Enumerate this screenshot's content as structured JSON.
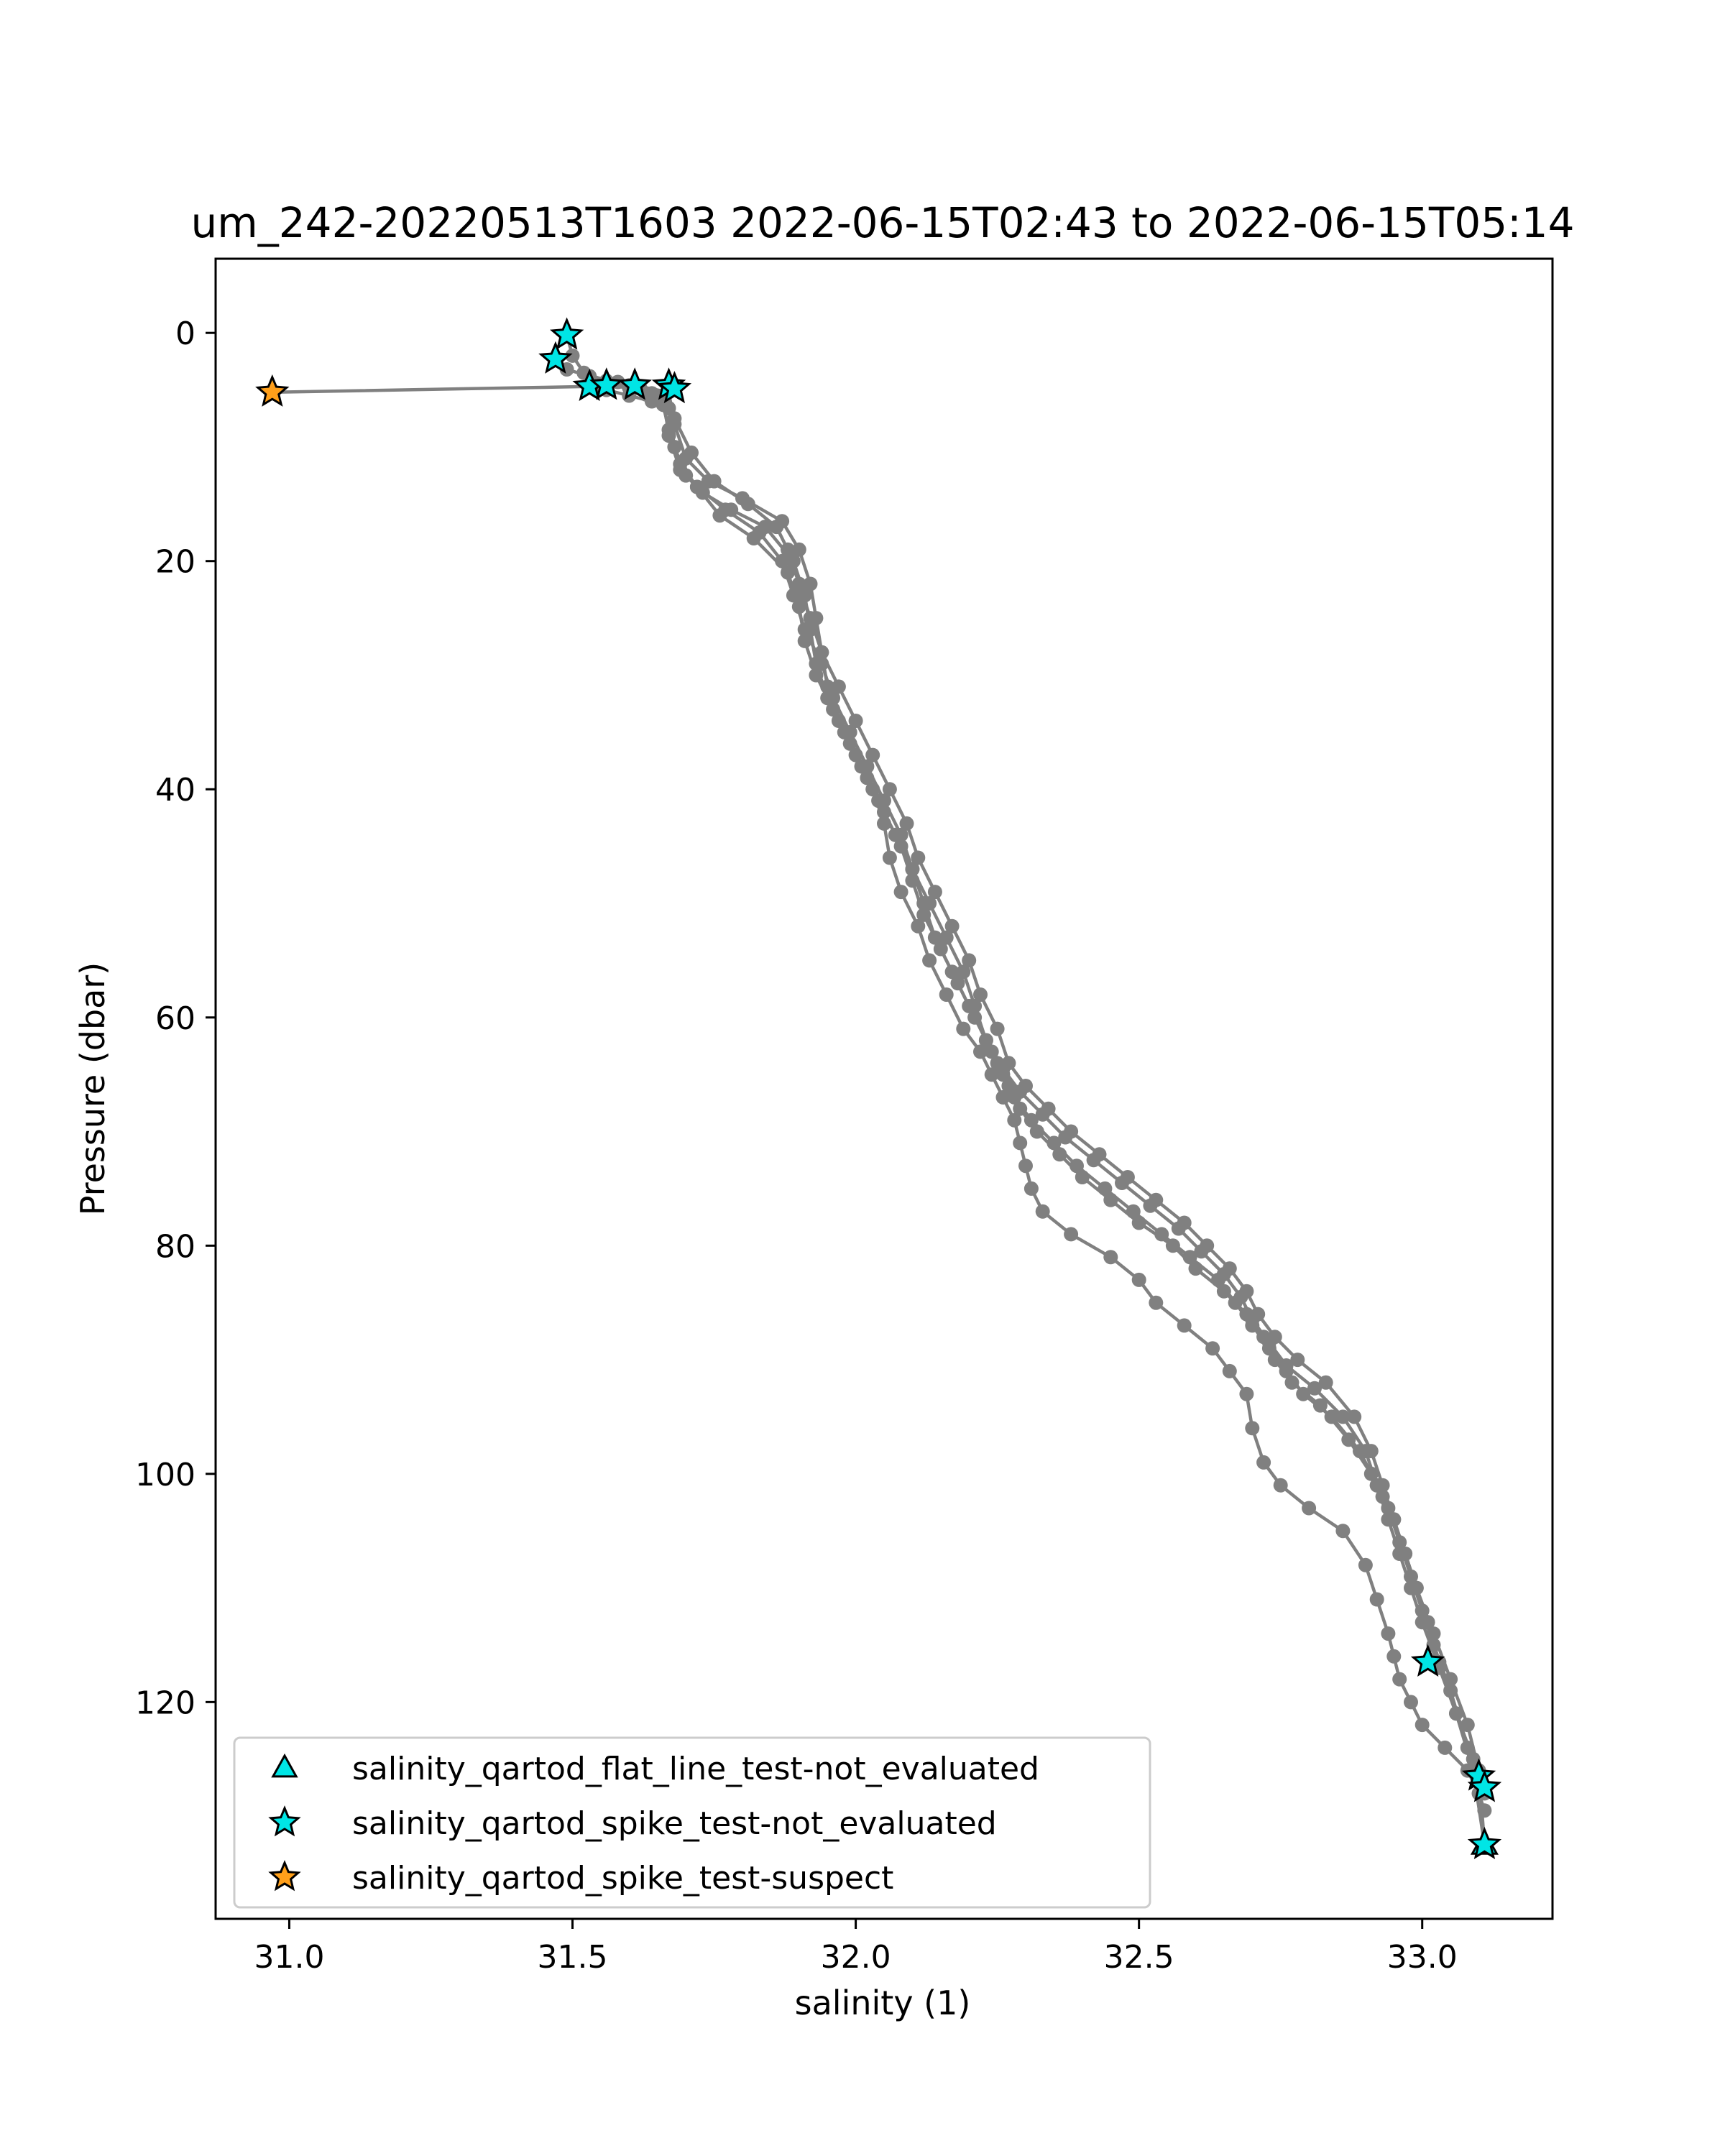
{
  "chart_data": {
    "type": "line",
    "title": "um_242-20220513T1603 2022-06-15T02:43 to 2022-06-15T05:14",
    "xlabel": "salinity (1)",
    "ylabel": "Pressure (dbar)",
    "xlim": [
      30.87,
      33.23
    ],
    "ylim": [
      139,
      -6.5
    ],
    "y_inverted": true,
    "grid": false,
    "x_ticks": [
      31.0,
      31.5,
      32.0,
      32.5,
      33.0
    ],
    "x_tick_labels": [
      "31.0",
      "31.5",
      "32.0",
      "32.5",
      "33.0"
    ],
    "y_ticks": [
      0,
      20,
      40,
      60,
      80,
      100,
      120
    ],
    "y_tick_labels": [
      "0",
      "20",
      "40",
      "60",
      "80",
      "100",
      "120"
    ],
    "profile_color": "#808080",
    "profiles": [
      {
        "x": [
          31.49,
          31.5,
          31.52,
          31.56,
          31.61,
          31.67,
          31.68,
          31.7,
          31.74,
          31.8,
          31.87,
          31.9,
          31.92,
          31.93,
          31.94,
          31.95,
          31.97,
          32.0,
          32.03,
          32.05,
          32.06,
          32.08,
          32.11,
          32.13,
          32.16,
          32.19,
          32.22,
          32.24,
          32.26,
          32.28,
          32.29,
          32.3,
          32.31,
          32.33,
          32.38,
          32.45,
          32.5,
          32.53,
          32.58,
          32.63,
          32.66,
          32.69,
          32.7,
          32.72,
          32.75,
          32.8,
          32.86,
          32.9,
          32.92,
          32.94,
          32.95,
          32.96,
          32.98,
          33.0,
          33.04,
          33.08,
          33.1,
          33.11
        ],
        "y": [
          0.2,
          2,
          3.5,
          4.2,
          4.6,
          5.2,
          8,
          11,
          13,
          14.5,
          16.5,
          19,
          22,
          25,
          28,
          31,
          34,
          37,
          40,
          43,
          46,
          49,
          52,
          55,
          58,
          61,
          63,
          65,
          67,
          69,
          71,
          73,
          75,
          77,
          79,
          81,
          83,
          85,
          87,
          89,
          91,
          93,
          96,
          99,
          101,
          103,
          105,
          108,
          111,
          114,
          116,
          118,
          120,
          122,
          124,
          126,
          128,
          129.5
        ]
      },
      {
        "x": [
          31.47,
          31.49,
          31.53,
          31.58,
          31.62,
          31.66,
          31.67,
          31.69,
          31.73,
          31.78,
          31.84,
          31.89,
          31.91,
          31.92,
          31.93,
          31.95,
          31.98,
          32.01,
          32.04,
          32.07,
          32.1,
          32.12,
          32.14,
          32.17,
          32.2,
          32.23,
          32.25,
          32.27,
          32.29,
          32.32,
          32.36,
          32.4,
          32.45,
          32.5,
          32.56,
          32.6,
          32.65,
          32.69,
          32.72,
          32.74,
          32.77,
          32.82,
          32.87,
          32.91,
          32.93,
          32.95,
          32.97,
          32.99,
          33.01,
          33.03,
          33.06,
          33.09,
          33.11
        ],
        "y": [
          2.3,
          3.2,
          3.8,
          4.3,
          4.9,
          5.6,
          9,
          12,
          14,
          15.5,
          17,
          20,
          23,
          26,
          29,
          32,
          35,
          38,
          41,
          44,
          47,
          50,
          53,
          56,
          59,
          62,
          64,
          66,
          68,
          70,
          72,
          74,
          76,
          78,
          80,
          82,
          84,
          86,
          88,
          90,
          92,
          94,
          97,
          100,
          102,
          104,
          107,
          110,
          113,
          116.5,
          121,
          126,
          132.5
        ]
      },
      {
        "x": [
          30.97,
          31.53,
          31.56,
          31.6,
          31.64,
          31.67,
          31.68,
          31.7,
          31.72,
          31.76,
          31.82,
          31.88,
          31.9,
          31.91,
          31.93,
          31.96,
          31.99,
          32.02,
          32.05,
          32.08,
          32.1,
          32.12,
          32.15,
          32.18,
          32.21,
          32.24,
          32.26,
          32.28,
          32.31,
          32.35,
          32.39,
          32.44,
          32.49,
          32.54,
          32.59,
          32.64,
          32.67,
          32.7,
          32.73,
          32.76,
          32.79,
          32.84,
          32.89,
          32.92,
          32.94,
          32.96,
          32.98,
          33.0,
          33.02,
          33.05,
          33.08,
          33.11
        ],
        "y": [
          5.2,
          4.7,
          5.0,
          5.5,
          6.0,
          6.6,
          10,
          12.5,
          13.5,
          16,
          18,
          21,
          24,
          27,
          30,
          33,
          36,
          39,
          42,
          45,
          48,
          51,
          54,
          57,
          60,
          63,
          65,
          67,
          69,
          71,
          73,
          75,
          77,
          79,
          81,
          83,
          85,
          87,
          89,
          91,
          93,
          95,
          98,
          101,
          103,
          106,
          109,
          112,
          115,
          119,
          124,
          127.5
        ]
      },
      {
        "x": [
          31.55,
          31.6,
          31.64,
          31.66,
          31.68,
          31.71,
          31.75,
          31.81,
          31.86,
          31.88,
          31.9,
          31.92,
          31.94,
          31.97,
          32.0,
          32.03,
          32.06,
          32.09,
          32.11,
          32.14,
          32.17,
          32.2,
          32.22,
          32.25,
          32.27,
          32.3,
          32.34,
          32.38,
          32.43,
          32.48,
          32.53,
          32.58,
          32.62,
          32.66,
          32.69,
          32.71,
          32.74,
          32.78,
          32.83,
          32.88,
          32.91,
          32.93,
          32.95,
          32.97,
          32.99,
          33.02,
          33.05,
          33.08,
          33.1,
          33.11
        ],
        "y": [
          4.6,
          4.8,
          5.3,
          6.2,
          7.5,
          10.5,
          13,
          15,
          17,
          19,
          22,
          25,
          28,
          31,
          34,
          37,
          40,
          43,
          46,
          49,
          52,
          55,
          58,
          61,
          64,
          66,
          68,
          70,
          72,
          74,
          76,
          78,
          80,
          82,
          84,
          86,
          88,
          90,
          92,
          95,
          98,
          101,
          104,
          107,
          110,
          114,
          118,
          122,
          126,
          132.5
        ]
      },
      {
        "x": [
          31.6,
          31.63,
          31.66,
          31.67,
          31.69,
          31.72,
          31.77,
          31.83,
          31.87,
          31.89,
          31.91,
          31.94,
          31.96,
          31.99,
          32.02,
          32.05,
          32.08,
          32.1,
          32.13,
          32.16,
          32.19,
          32.21,
          32.23,
          32.26,
          32.29,
          32.33,
          32.37,
          32.42,
          32.47,
          32.52,
          32.57,
          32.61,
          32.65,
          32.68,
          32.7,
          32.73,
          32.76,
          32.81,
          32.86,
          32.9,
          32.92,
          32.94,
          32.96,
          32.98,
          33.0,
          33.03,
          33.06,
          33.09,
          33.11
        ],
        "y": [
          4.6,
          5.4,
          6.3,
          8.5,
          11.5,
          13.5,
          15.5,
          17.5,
          20,
          23,
          26,
          29,
          32,
          35,
          38,
          41,
          44,
          47,
          50,
          53,
          56,
          59,
          62,
          64.5,
          66.5,
          68.5,
          70.5,
          72.5,
          74.5,
          76.5,
          78.5,
          80.5,
          82.5,
          84.5,
          86.5,
          88.5,
          90.5,
          92.5,
          95,
          98,
          101,
          104,
          107,
          110,
          113,
          117,
          121,
          125,
          128
        ]
      }
    ],
    "series": [
      {
        "name": "salinity_qartod_flat_line_test-not_evaluated",
        "marker": "triangle",
        "color": "#00e5e5",
        "x": [
          33.11
        ],
        "y": [
          132.5
        ]
      },
      {
        "name": "salinity_qartod_spike_test-not_evaluated",
        "marker": "star",
        "color": "#00e5e5",
        "x": [
          31.49,
          31.47,
          31.53,
          31.56,
          31.61,
          31.67,
          31.68,
          33.01,
          33.1,
          33.11,
          33.11
        ],
        "y": [
          0.2,
          2.3,
          4.7,
          4.6,
          4.6,
          4.6,
          4.9,
          116.5,
          126.5,
          127.5,
          132.5
        ]
      },
      {
        "name": "salinity_qartod_spike_test-suspect",
        "marker": "star",
        "color": "#ff9f1a",
        "x": [
          30.97
        ],
        "y": [
          5.2
        ]
      }
    ],
    "legend_position": "lower-left"
  }
}
